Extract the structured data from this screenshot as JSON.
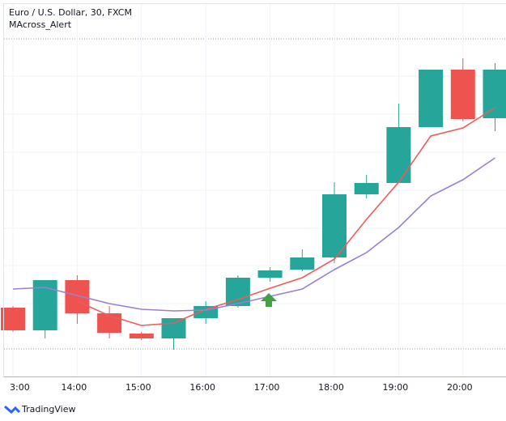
{
  "chart_data": {
    "type": "candlestick",
    "title": "Euro / U.S. Dollar, 30, FXCM",
    "subtitle": "MAcross_Alert",
    "brand": "TradingView",
    "categories": [
      "3:00",
      null,
      "14:00",
      null,
      "15:00",
      null,
      "16:00",
      null,
      "17:00",
      null,
      "18:00",
      null,
      "19:00",
      null,
      "20:00",
      null
    ],
    "open": [
      140,
      112,
      174,
      133,
      108,
      102,
      127,
      142,
      177,
      187,
      202,
      280,
      294,
      363,
      434,
      374
    ],
    "high": [
      142,
      174,
      180,
      142,
      110,
      127,
      148,
      180,
      190,
      212,
      295,
      304,
      392,
      434,
      448,
      442
    ],
    "low": [
      110,
      102,
      120,
      102,
      100,
      88,
      120,
      140,
      172,
      185,
      195,
      275,
      294,
      363,
      370,
      358
    ],
    "close": [
      112,
      174,
      133,
      109,
      102,
      127,
      142,
      177,
      186,
      202,
      280,
      294,
      363,
      434,
      373,
      434
    ],
    "up_color": "#26a69a",
    "down_color": "#ef5350",
    "ylim": [
      55,
      515
    ],
    "series": [
      {
        "color": "#f05a5a",
        "values": [
          null,
          null,
          148,
          130,
          118,
          121,
          138,
          150,
          164,
          177,
          200,
          249,
          295,
          352,
          362,
          387
        ]
      },
      {
        "color": "#9a7fd1",
        "values": [
          163,
          165,
          155,
          145,
          138,
          136,
          137,
          145,
          154,
          163,
          187,
          208,
          239,
          278,
          298,
          325
        ]
      }
    ]
  }
}
